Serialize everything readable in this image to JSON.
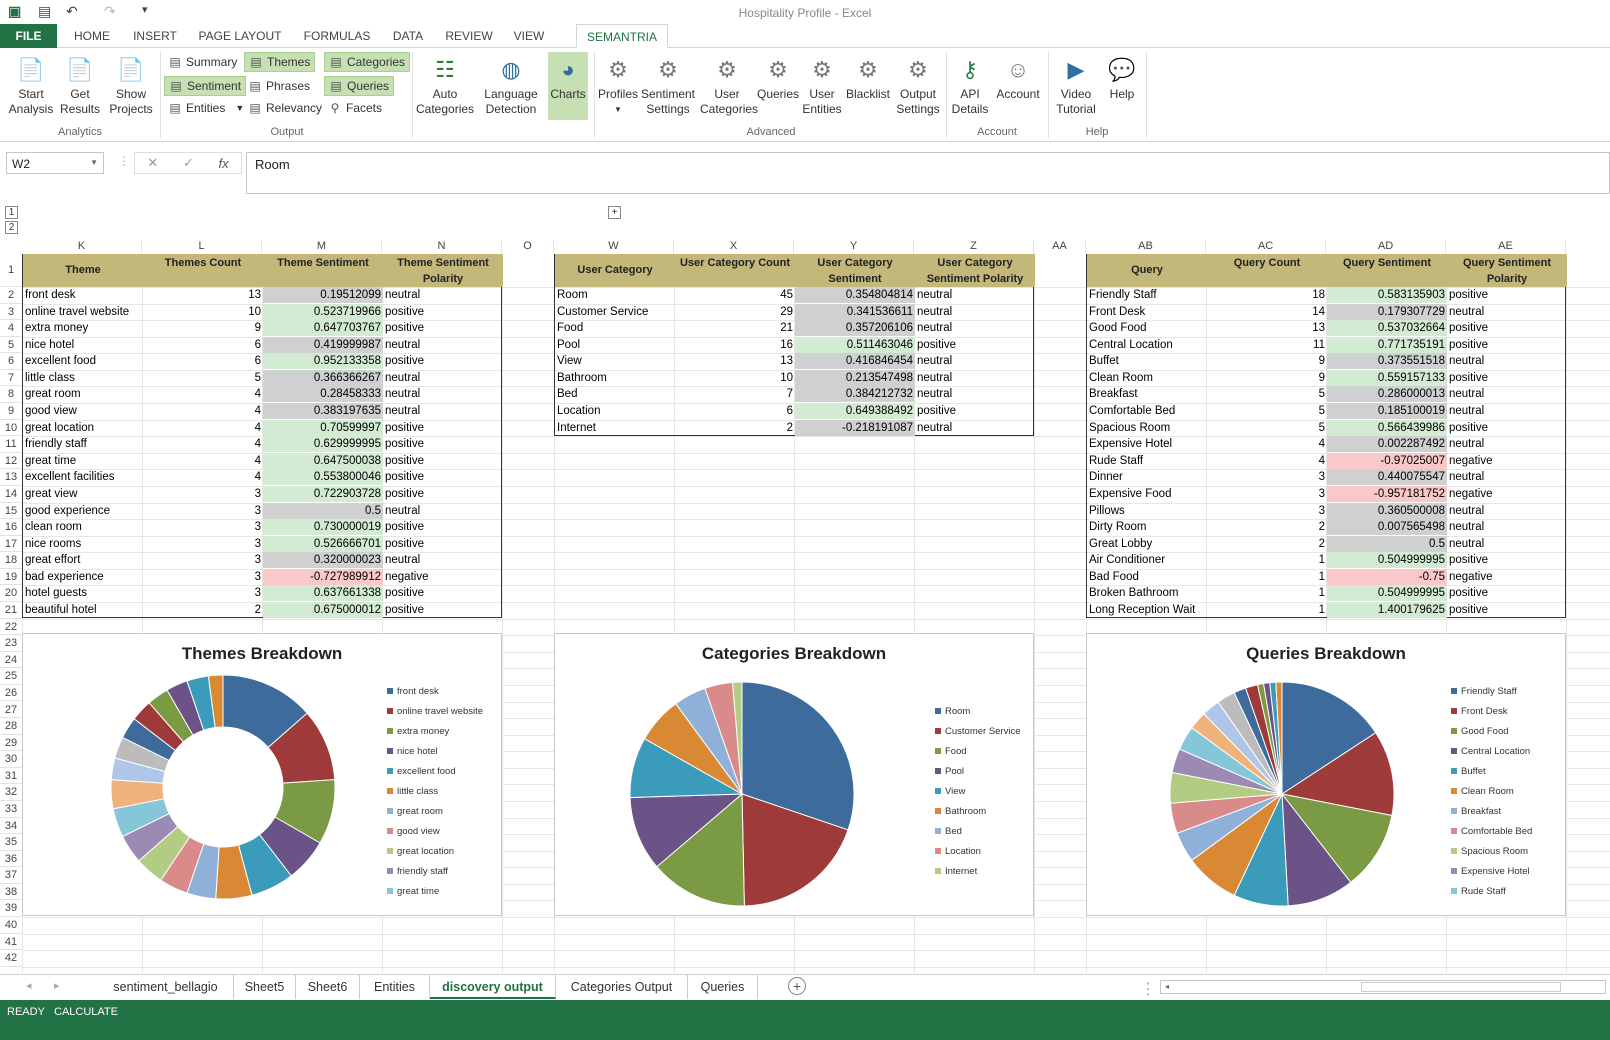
{
  "window": {
    "title": "Hospitality Profile - Excel"
  },
  "ribbon_tabs": [
    "FILE",
    "HOME",
    "INSERT",
    "PAGE LAYOUT",
    "FORMULAS",
    "DATA",
    "REVIEW",
    "VIEW",
    "SEMANTRIA"
  ],
  "ribbon": {
    "analytics": {
      "start": "Start Analysis",
      "get": "Get Results",
      "show": "Show Projects",
      "label": "Analytics"
    },
    "output": {
      "summary": "Summary",
      "sentiment": "Sentiment",
      "entities": "Entities",
      "themes": "Themes",
      "phrases": "Phrases",
      "relevancy": "Relevancy",
      "categories": "Categories",
      "queries": "Queries",
      "facets": "Facets",
      "label": "Output"
    },
    "auto": "Auto Categories",
    "lang": "Language Detection",
    "charts": "Charts",
    "advanced": {
      "profiles": "Profiles",
      "sentset": "Sentiment Settings",
      "usercat": "User Categories",
      "queries": "Queries",
      "userent": "User Entities",
      "blacklist": "Blacklist",
      "outset": "Output Settings",
      "label": "Advanced"
    },
    "account": {
      "api": "API Details",
      "account": "Account",
      "label": "Account"
    },
    "help": {
      "video": "Video Tutorial",
      "help": "Help",
      "label": "Help"
    }
  },
  "formula_bar": {
    "name_box": "W2",
    "formula": "Room"
  },
  "columns": [
    "K",
    "L",
    "M",
    "N",
    "O",
    "W",
    "X",
    "Y",
    "Z",
    "AA",
    "AB",
    "AC",
    "AD",
    "AE"
  ],
  "themes_table": {
    "headers": [
      "Theme",
      "Themes Count",
      "Theme Sentiment",
      "Theme Sentiment Polarity"
    ],
    "rows": [
      [
        "front desk",
        "13",
        "0.19512099",
        "neutral"
      ],
      [
        "online travel website",
        "10",
        "0.523719966",
        "positive"
      ],
      [
        "extra money",
        "9",
        "0.647703767",
        "positive"
      ],
      [
        "nice hotel",
        "6",
        "0.419999987",
        "neutral"
      ],
      [
        "excellent food",
        "6",
        "0.952133358",
        "positive"
      ],
      [
        "little class",
        "5",
        "0.366366267",
        "neutral"
      ],
      [
        "great room",
        "4",
        "0.28458333",
        "neutral"
      ],
      [
        "good view",
        "4",
        "0.383197635",
        "neutral"
      ],
      [
        "great location",
        "4",
        "0.70599997",
        "positive"
      ],
      [
        "friendly staff",
        "4",
        "0.629999995",
        "positive"
      ],
      [
        "great time",
        "4",
        "0.647500038",
        "positive"
      ],
      [
        "excellent facilities",
        "4",
        "0.553800046",
        "positive"
      ],
      [
        "great view",
        "3",
        "0.722903728",
        "positive"
      ],
      [
        "good experience",
        "3",
        "0.5",
        "neutral"
      ],
      [
        "clean room",
        "3",
        "0.730000019",
        "positive"
      ],
      [
        "nice rooms",
        "3",
        "0.526666701",
        "positive"
      ],
      [
        "great effort",
        "3",
        "0.320000023",
        "neutral"
      ],
      [
        "bad experience",
        "3",
        "-0.727989912",
        "negative"
      ],
      [
        "hotel guests",
        "3",
        "0.637661338",
        "positive"
      ],
      [
        "beautiful hotel",
        "2",
        "0.675000012",
        "positive"
      ]
    ]
  },
  "category_table": {
    "headers": [
      "User Category",
      "User Category Count",
      "User Category Sentiment",
      "User Category Sentiment Polarity"
    ],
    "rows": [
      [
        "Room",
        "45",
        "0.354804814",
        "neutral"
      ],
      [
        "Customer Service",
        "29",
        "0.341536611",
        "neutral"
      ],
      [
        "Food",
        "21",
        "0.357206106",
        "neutral"
      ],
      [
        "Pool",
        "16",
        "0.511463046",
        "positive"
      ],
      [
        "View",
        "13",
        "0.416846454",
        "neutral"
      ],
      [
        "Bathroom",
        "10",
        "0.213547498",
        "neutral"
      ],
      [
        "Bed",
        "7",
        "0.384212732",
        "neutral"
      ],
      [
        "Location",
        "6",
        "0.649388492",
        "positive"
      ],
      [
        "Internet",
        "2",
        "-0.218191087",
        "neutral"
      ]
    ]
  },
  "query_table": {
    "headers": [
      "Query",
      "Query Count",
      "Query Sentiment",
      "Query Sentiment Polarity"
    ],
    "rows": [
      [
        "Friendly Staff",
        "18",
        "0.583135903",
        "positive"
      ],
      [
        "Front Desk",
        "14",
        "0.179307729",
        "neutral"
      ],
      [
        "Good Food",
        "13",
        "0.537032664",
        "positive"
      ],
      [
        "Central Location",
        "11",
        "0.771735191",
        "positive"
      ],
      [
        "Buffet",
        "9",
        "0.373551518",
        "neutral"
      ],
      [
        "Clean Room",
        "9",
        "0.559157133",
        "positive"
      ],
      [
        "Breakfast",
        "5",
        "0.286000013",
        "neutral"
      ],
      [
        "Comfortable Bed",
        "5",
        "0.185100019",
        "neutral"
      ],
      [
        "Spacious Room",
        "5",
        "0.566439986",
        "positive"
      ],
      [
        "Expensive Hotel",
        "4",
        "0.002287492",
        "neutral"
      ],
      [
        "Rude Staff",
        "4",
        "-0.97025007",
        "negative"
      ],
      [
        "Dinner",
        "3",
        "0.440075547",
        "neutral"
      ],
      [
        "Expensive Food",
        "3",
        "-0.957181752",
        "negative"
      ],
      [
        "Pillows",
        "3",
        "0.360500008",
        "neutral"
      ],
      [
        "Dirty Room",
        "2",
        "0.007565498",
        "neutral"
      ],
      [
        "Great Lobby",
        "2",
        "0.5",
        "neutral"
      ],
      [
        "Air Conditioner",
        "1",
        "0.504999995",
        "positive"
      ],
      [
        "Bad Food",
        "1",
        "-0.75",
        "negative"
      ],
      [
        "Broken Bathroom",
        "1",
        "0.504999995",
        "positive"
      ],
      [
        "Long Reception Wait",
        "1",
        "1.400179625",
        "positive"
      ]
    ]
  },
  "chart_data": [
    {
      "type": "pie",
      "title": "Themes Breakdown",
      "donut": true,
      "categories": [
        "front desk",
        "online travel website",
        "extra money",
        "nice hotel",
        "excellent food",
        "little class",
        "great room",
        "good view",
        "great location",
        "friendly staff",
        "great time",
        "excellent facilities",
        "great view",
        "good experience",
        "clean room",
        "nice rooms",
        "great effort",
        "bad experience",
        "hotel guests",
        "beautiful hotel"
      ],
      "values": [
        13,
        10,
        9,
        6,
        6,
        5,
        4,
        4,
        4,
        4,
        4,
        4,
        3,
        3,
        3,
        3,
        3,
        3,
        3,
        2
      ],
      "legend_entries": [
        "front desk",
        "online travel website",
        "extra money",
        "nice hotel",
        "excellent food",
        "little class",
        "great room",
        "good view",
        "great location",
        "friendly staff",
        "great time"
      ],
      "legend": "right"
    },
    {
      "type": "pie",
      "title": "Categories Breakdown",
      "categories": [
        "Room",
        "Customer Service",
        "Food",
        "Pool",
        "View",
        "Bathroom",
        "Bed",
        "Location",
        "Internet"
      ],
      "values": [
        45,
        29,
        21,
        16,
        13,
        10,
        7,
        6,
        2
      ],
      "legend_entries": [
        "Room",
        "Customer Service",
        "Food",
        "Pool",
        "View",
        "Bathroom",
        "Bed",
        "Location",
        "Internet"
      ],
      "legend": "right"
    },
    {
      "type": "pie",
      "title": "Queries Breakdown",
      "categories": [
        "Friendly Staff",
        "Front Desk",
        "Good Food",
        "Central Location",
        "Buffet",
        "Clean Room",
        "Breakfast",
        "Comfortable Bed",
        "Spacious Room",
        "Expensive Hotel",
        "Rude Staff",
        "Dinner",
        "Expensive Food",
        "Pillows",
        "Dirty Room",
        "Great Lobby",
        "Air Conditioner",
        "Bad Food",
        "Broken Bathroom",
        "Long Reception Wait"
      ],
      "values": [
        18,
        14,
        13,
        11,
        9,
        9,
        5,
        5,
        5,
        4,
        4,
        3,
        3,
        3,
        2,
        2,
        1,
        1,
        1,
        1
      ],
      "legend_entries": [
        "Friendly Staff",
        "Front Desk",
        "Good Food",
        "Central Location",
        "Buffet",
        "Clean Room",
        "Breakfast",
        "Comfortable Bed",
        "Spacious Room",
        "Expensive Hotel",
        "Rude Staff"
      ],
      "legend": "right"
    }
  ],
  "palette": [
    "#3c6b9c",
    "#9e3b3a",
    "#7a9a44",
    "#6b5387",
    "#3b9bba",
    "#d98934",
    "#8fb1d9",
    "#d98b8a",
    "#b3cc84",
    "#9b8bb3",
    "#85c6d9",
    "#f0b27b",
    "#aec7e8",
    "#bcbcbc"
  ],
  "sheet_tabs": [
    "sentiment_bellagio",
    "Sheet5",
    "Sheet6",
    "Entities",
    "discovery output",
    "Categories Output",
    "Queries"
  ],
  "active_sheet": "discovery output",
  "status": {
    "ready": "READY",
    "calculate": "CALCULATE"
  }
}
